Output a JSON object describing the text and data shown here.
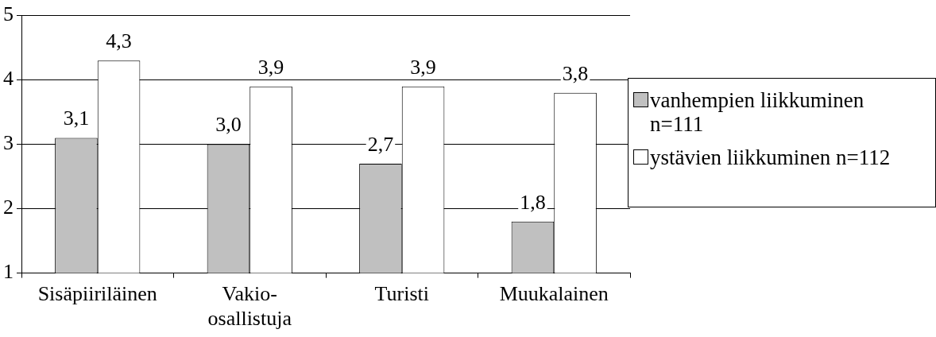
{
  "chart_data": {
    "type": "bar",
    "categories": [
      "Sisäpiiriläinen",
      "Vakio-osallistuja",
      "Turisti",
      "Muukalainen"
    ],
    "series": [
      {
        "name": "vanhempien liikkuminen n=111",
        "color": "#c0c0c0",
        "values": [
          3.1,
          3.0,
          2.7,
          1.8
        ],
        "value_labels": [
          "3,1",
          "3,0",
          "2,7",
          "1,8"
        ]
      },
      {
        "name": "ystävien liikkuminen n=112",
        "color": "#ffffff",
        "values": [
          4.3,
          3.9,
          3.9,
          3.8
        ],
        "value_labels": [
          "4,3",
          "3,9",
          "3,9",
          "3,8"
        ]
      }
    ],
    "ylim": [
      1,
      5
    ],
    "yticks": [
      1,
      2,
      3,
      4,
      5
    ],
    "grid": "y",
    "legend": "right"
  }
}
